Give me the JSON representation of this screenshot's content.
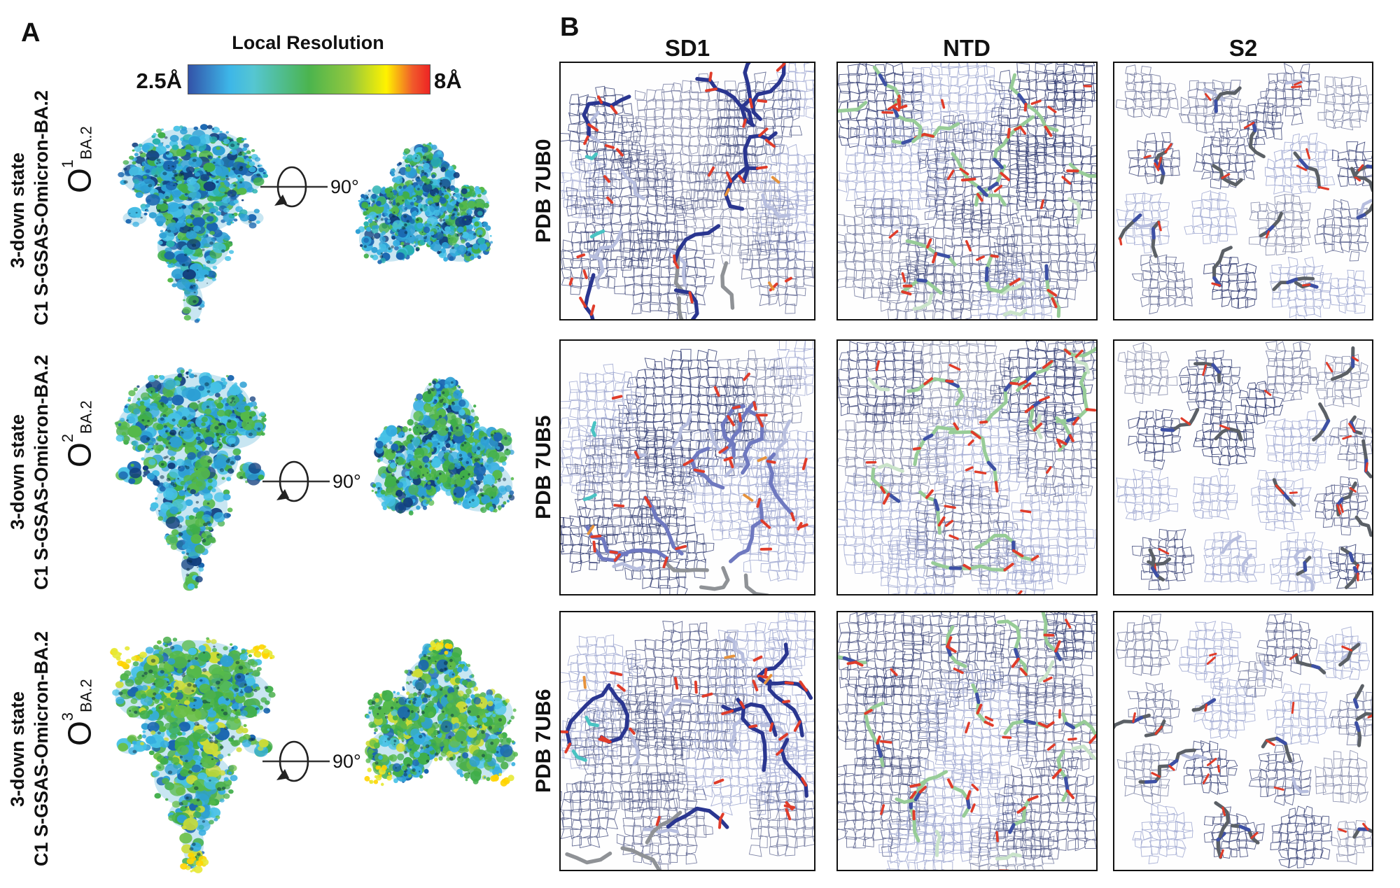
{
  "figure": {
    "panel_a": {
      "label": "A",
      "colorbar": {
        "title": "Local Resolution",
        "min_label": "2.5Å",
        "max_label": "8Å",
        "stops": [
          [
            "#3353a8",
            0
          ],
          [
            "#3db6e8",
            0.17
          ],
          [
            "#55c6d2",
            0.27
          ],
          [
            "#4bb44e",
            0.5
          ],
          [
            "#93c83d",
            0.67
          ],
          [
            "#fff200",
            0.82
          ],
          [
            "#f0592b",
            0.93
          ],
          [
            "#ee2424",
            1
          ]
        ]
      },
      "rows": [
        {
          "state_line1": "3-down state",
          "state_line2": "C1 S-GSAS-Omicron-BA.2",
          "symbol": "O",
          "superscript": "1",
          "subscript": "BA.2",
          "rotation_label": "90°"
        },
        {
          "state_line1": "3-down state",
          "state_line2": "C1 S-GSAS-Omicron-BA.2",
          "symbol": "O",
          "superscript": "2",
          "subscript": "BA.2",
          "rotation_label": "90°"
        },
        {
          "state_line1": "3-down state",
          "state_line2": "C1 S-GSAS-Omicron-BA.2",
          "symbol": "O",
          "superscript": "3",
          "subscript": "BA.2",
          "rotation_label": "90°"
        }
      ]
    },
    "panel_b": {
      "label": "B",
      "column_headers": [
        "SD1",
        "NTD",
        "S2"
      ],
      "row_labels": [
        "PDB 7UB0",
        "PDB 7UB5",
        "PDB 7UB6"
      ]
    },
    "colors": {
      "mesh_line": "#2f3970",
      "mesh_faint": "#9aa3cf",
      "stick_sd1_by_row": [
        "#2a3690",
        "#6f79c0",
        "#2a3690"
      ],
      "stick_ntd": "#97cc97",
      "stick_ntd_pale": "#c9e3c9",
      "stick_s2": "#5b6066",
      "stick_blue": "#3d50a5",
      "stick_faint": "#b7bede",
      "stick_gray": "#8f9296",
      "stick_cyan": "#49c3c3",
      "oxygen_red": "#e03c2a",
      "orange_tip": "#e6923c",
      "speckle": "#062a40",
      "accent_yellow": [
        "#e7e934",
        "#ffd400"
      ],
      "map_palettes": {
        "row1": [
          "#1a66b0",
          "#1a66b0",
          "#2d9fd4",
          "#2d9fd4",
          "#45c1e6",
          "#35aee0",
          "#45c1e6",
          "#3fae49",
          "#55b94a",
          "#123f7e",
          "#29b2b0",
          "#3fae49"
        ],
        "row2": [
          "#1a66b0",
          "#2d9fd4",
          "#2d9fd4",
          "#45c1e6",
          "#35aee0",
          "#3fae49",
          "#55b94a",
          "#4db04e",
          "#123f7e",
          "#3fae49",
          "#45c1e6",
          "#55b94a"
        ],
        "row3": [
          "#3fae49",
          "#55b94a",
          "#4db04e",
          "#6abf45",
          "#3fae49",
          "#45c1e6",
          "#2d9fd4",
          "#1a66b0",
          "#35aee0",
          "#55b94a",
          "#cddc35",
          "#4db04e"
        ]
      }
    }
  }
}
